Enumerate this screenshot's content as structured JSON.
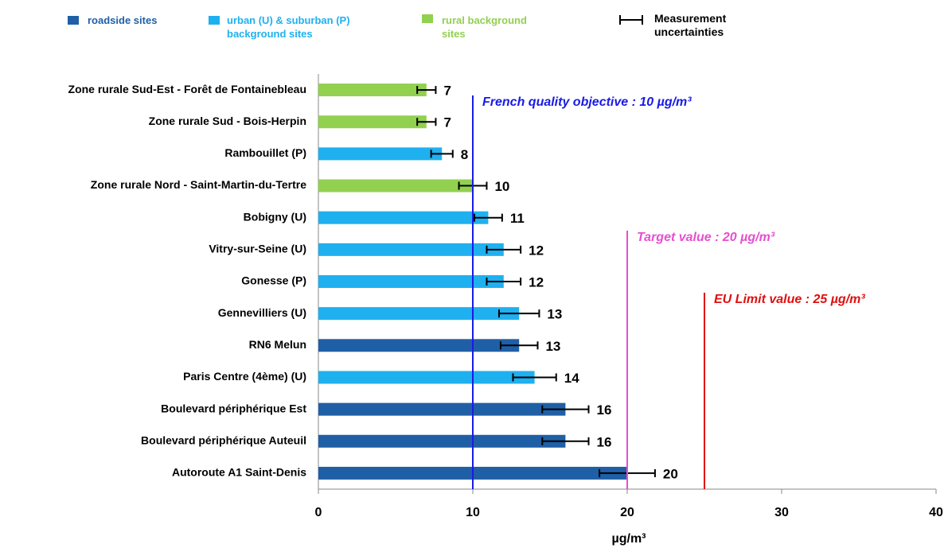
{
  "chart_data": {
    "type": "bar",
    "orientation": "horizontal",
    "categories": [
      "Zone rurale Sud-Est - Forêt de Fontainebleau",
      "Zone rurale Sud - Bois-Herpin",
      "Rambouillet (P)",
      "Zone rurale Nord - Saint-Martin-du-Tertre",
      "Bobigny (U)",
      "Vitry-sur-Seine (U)",
      "Gonesse (P)",
      "Gennevilliers (U)",
      "RN6 Melun",
      "Paris Centre (4ème) (U)",
      "Boulevard périphérique Est",
      "Boulevard périphérique Auteuil",
      "Autoroute A1 Saint-Denis"
    ],
    "series": [
      {
        "name": "roadside sites",
        "color": "#1f5fa6",
        "values": [
          null,
          null,
          null,
          null,
          null,
          null,
          null,
          null,
          13,
          null,
          16,
          16,
          20
        ],
        "errors": [
          null,
          null,
          null,
          null,
          null,
          null,
          null,
          null,
          1.2,
          null,
          1.5,
          1.5,
          1.8
        ]
      },
      {
        "name": "urban (U) & suburban (P) background sites",
        "color": "#1fb0ef",
        "values": [
          null,
          null,
          8,
          null,
          11,
          12,
          12,
          13,
          null,
          14,
          null,
          null,
          null
        ],
        "errors": [
          null,
          null,
          0.7,
          null,
          0.9,
          1.1,
          1.1,
          1.3,
          null,
          1.4,
          null,
          null,
          null
        ]
      },
      {
        "name": "rural background sites",
        "color": "#92d050",
        "values": [
          7,
          7,
          null,
          10,
          null,
          null,
          null,
          null,
          null,
          null,
          null,
          null,
          null
        ],
        "errors": [
          0.6,
          0.6,
          null,
          0.9,
          null,
          null,
          null,
          null,
          null,
          null,
          null,
          null,
          null
        ]
      }
    ],
    "error_legend": "Measurement uncertainties",
    "xlabel": "µg/m³",
    "xlim": [
      0,
      40
    ],
    "xticks": [
      0,
      10,
      20,
      30,
      40
    ],
    "reference_lines": [
      {
        "value": 10,
        "label": "French quality objective : 10 µg/m³",
        "color": "#1a1ae6"
      },
      {
        "value": 20,
        "label": "Target value : 20 µg/m³",
        "color": "#e64fd0"
      },
      {
        "value": 25,
        "label": "EU Limit value : 25 µg/m³",
        "color": "#e01010"
      }
    ]
  }
}
